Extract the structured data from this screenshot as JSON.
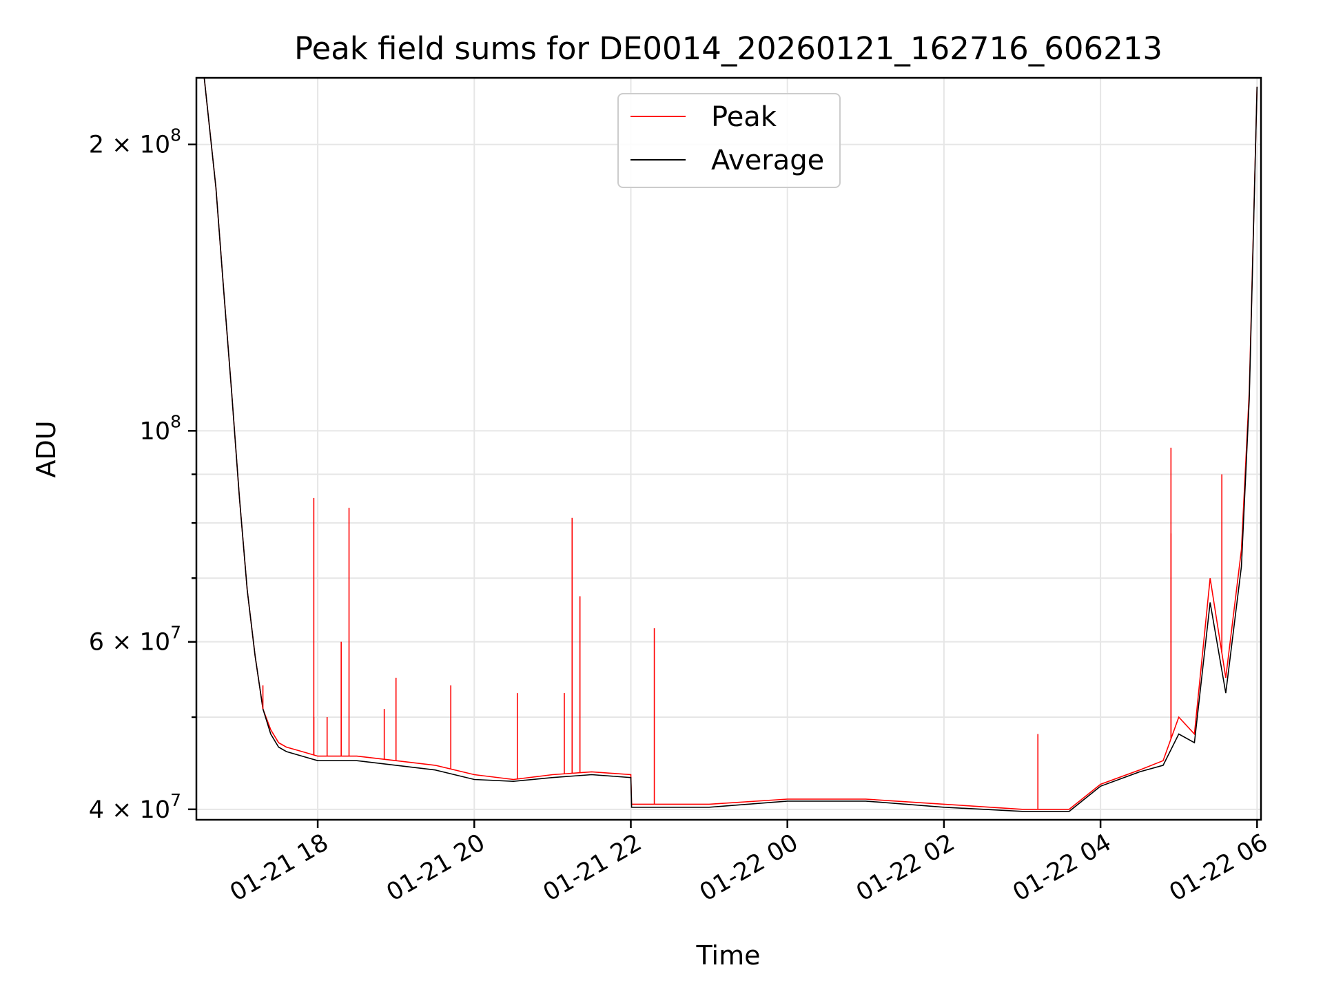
{
  "chart_data": {
    "type": "line",
    "title": "Peak field sums for DE0014_20260121_162716_606213",
    "xlabel": "Time",
    "ylabel": "ADU",
    "yscale": "log",
    "ylim": [
      39000000,
      235000000
    ],
    "xlim": [
      -1.55,
      12.05
    ],
    "x_units": "hours after 2026-01-21 18:00",
    "grid": true,
    "legend_position": "top-center",
    "x_ticks": [
      {
        "value": 0,
        "label": "01-21 18"
      },
      {
        "value": 2,
        "label": "01-21 20"
      },
      {
        "value": 4,
        "label": "01-21 22"
      },
      {
        "value": 6,
        "label": "01-22 00"
      },
      {
        "value": 8,
        "label": "01-22 02"
      },
      {
        "value": 10,
        "label": "01-22 04"
      },
      {
        "value": 12,
        "label": "01-22 06"
      }
    ],
    "y_major_ticks": [
      {
        "value": 40000000,
        "label_base": "4 × 10",
        "label_exp": "7"
      },
      {
        "value": 60000000,
        "label_base": "6 × 10",
        "label_exp": "7"
      },
      {
        "value": 100000000,
        "label_base": "10",
        "label_exp": "8"
      },
      {
        "value": 200000000,
        "label_base": "2 × 10",
        "label_exp": "8"
      }
    ],
    "y_minor_ticks": [
      50000000,
      70000000,
      80000000,
      90000000
    ],
    "series": [
      {
        "name": "Peak",
        "color": "#ff0000",
        "x": [
          -1.45,
          -1.3,
          -1.2,
          -1.1,
          -1.0,
          -0.9,
          -0.8,
          -0.7,
          -0.6,
          -0.5,
          -0.4,
          -0.2,
          0,
          0.5,
          1.0,
          1.5,
          2.0,
          2.5,
          3.0,
          3.5,
          4.0,
          4.01,
          5.0,
          6.0,
          7.0,
          8.0,
          9.0,
          9.6,
          10.0,
          10.5,
          10.8,
          11.0,
          11.2,
          11.4,
          11.6,
          11.8,
          11.9,
          12.0
        ],
        "values": [
          235000000,
          180000000,
          140000000,
          110000000,
          85000000,
          68000000,
          58000000,
          51000000,
          48500000,
          47000000,
          46500000,
          46000000,
          45500000,
          45500000,
          45000000,
          44500000,
          43500000,
          43000000,
          43500000,
          43800000,
          43500000,
          40500000,
          40500000,
          41000000,
          41000000,
          40500000,
          40000000,
          40000000,
          42500000,
          44000000,
          45000000,
          50000000,
          48000000,
          70000000,
          55000000,
          75000000,
          110000000,
          230000000
        ],
        "spikes": [
          {
            "x": -0.7,
            "peak": 54000000
          },
          {
            "x": -0.05,
            "peak": 50000000
          },
          {
            "x": -0.05,
            "peak": 85000000
          },
          {
            "x": 0.12,
            "peak": 50000000
          },
          {
            "x": 0.3,
            "peak": 60000000
          },
          {
            "x": 0.4,
            "peak": 83000000
          },
          {
            "x": 0.85,
            "peak": 51000000
          },
          {
            "x": 1.0,
            "peak": 55000000
          },
          {
            "x": 1.7,
            "peak": 54000000
          },
          {
            "x": 2.55,
            "peak": 53000000
          },
          {
            "x": 3.15,
            "peak": 53000000
          },
          {
            "x": 3.25,
            "peak": 81000000
          },
          {
            "x": 3.35,
            "peak": 67000000
          },
          {
            "x": 4.3,
            "peak": 62000000
          },
          {
            "x": 9.2,
            "peak": 48000000
          },
          {
            "x": 10.9,
            "peak": 78000000
          },
          {
            "x": 10.9,
            "peak": 96000000
          },
          {
            "x": 11.55,
            "peak": 90000000
          }
        ]
      },
      {
        "name": "Average",
        "color": "#000000",
        "x": [
          -1.45,
          -1.3,
          -1.2,
          -1.1,
          -1.0,
          -0.9,
          -0.8,
          -0.7,
          -0.6,
          -0.5,
          -0.4,
          -0.2,
          0,
          0.5,
          1.0,
          1.5,
          2.0,
          2.5,
          3.0,
          3.5,
          4.0,
          4.01,
          5.0,
          6.0,
          7.0,
          8.0,
          9.0,
          9.6,
          10.0,
          10.5,
          10.8,
          11.0,
          11.2,
          11.4,
          11.6,
          11.8,
          11.9,
          12.0
        ],
        "values": [
          235000000,
          180000000,
          140000000,
          110000000,
          85000000,
          68000000,
          58000000,
          51000000,
          48000000,
          46500000,
          46000000,
          45500000,
          45000000,
          45000000,
          44500000,
          44000000,
          43000000,
          42800000,
          43200000,
          43500000,
          43200000,
          40200000,
          40200000,
          40800000,
          40800000,
          40200000,
          39800000,
          39800000,
          42300000,
          43800000,
          44500000,
          48000000,
          47000000,
          66000000,
          53000000,
          72000000,
          108000000,
          230000000
        ]
      }
    ]
  }
}
